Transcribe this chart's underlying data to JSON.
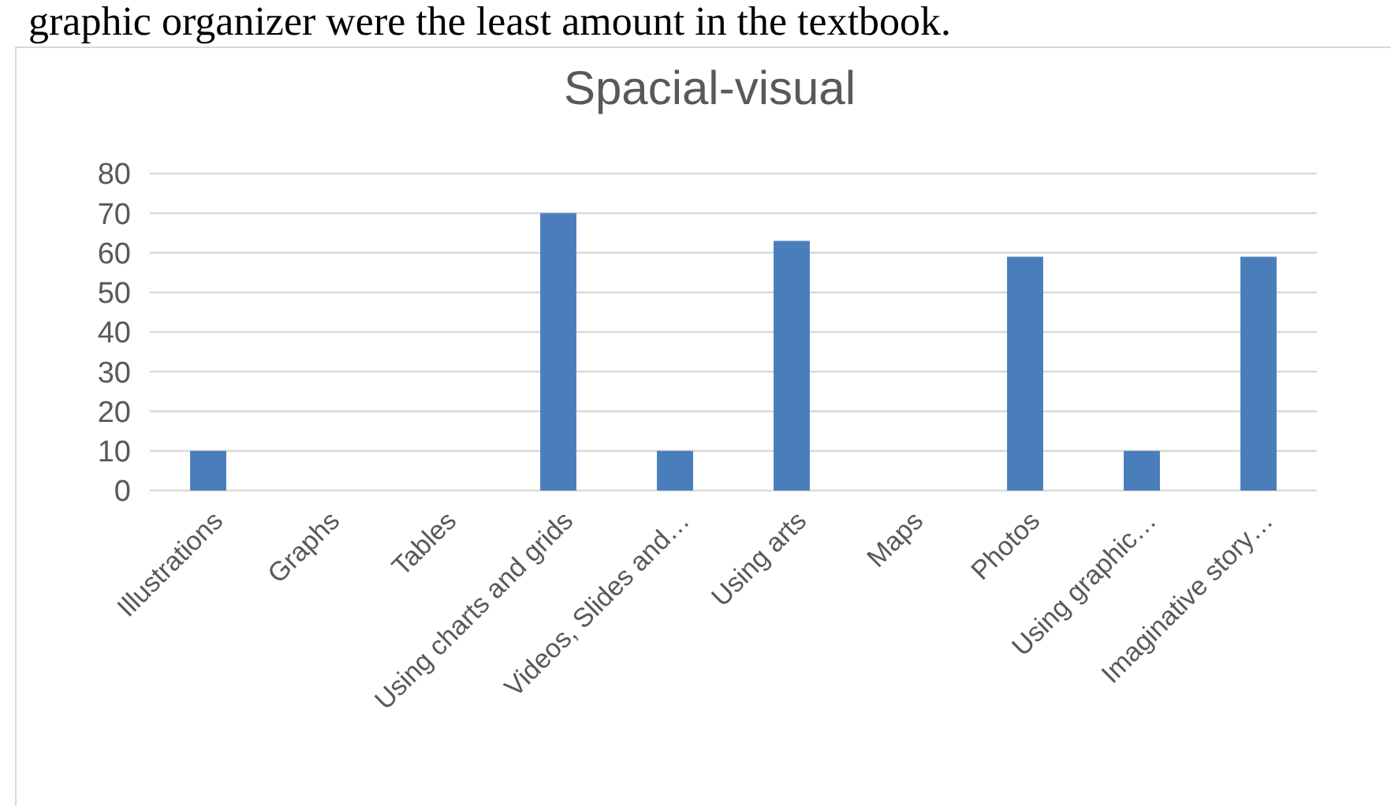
{
  "chart_data": {
    "type": "bar",
    "title": "Spacial-visual",
    "annotations": [
      "graphic organizer were the least amount in the textbook."
    ],
    "categories": [
      "Illustrations",
      "Graphs",
      "Tables",
      "Using charts and grids",
      "Videos, Slides and…",
      "Using arts",
      "Maps",
      "Photos",
      "Using graphic…",
      "Imaginative story…"
    ],
    "values": [
      10,
      0,
      0,
      70,
      10,
      63,
      0,
      59,
      10,
      59
    ],
    "color": "#4a7ebb",
    "ylim": [
      0,
      80
    ],
    "yticks": [
      0,
      10,
      20,
      30,
      40,
      50,
      60,
      70,
      80
    ],
    "grid": "y"
  }
}
